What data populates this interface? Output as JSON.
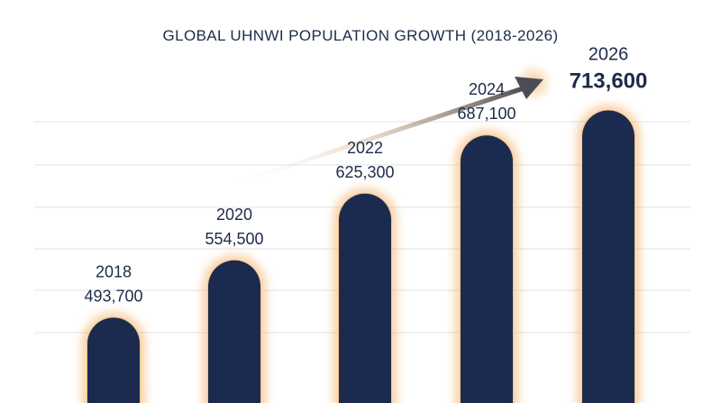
{
  "colors": {
    "bar": "#1b2b4f",
    "glow": "#f2a04a",
    "grid": "#e3e3e3",
    "arrow": "#4a4d58",
    "text": "#1d2b4a"
  },
  "chart_data": {
    "type": "bar",
    "title": "GLOBAL UHNWI POPULATION GROWTH (2018-2026)",
    "categories": [
      "2018",
      "2020",
      "2022",
      "2024",
      "2026"
    ],
    "values": [
      493700,
      554500,
      625300,
      687100,
      713600
    ],
    "value_labels": [
      "493,700",
      "554,500",
      "625,300",
      "687,100",
      "713,600"
    ],
    "highlight_index": 4,
    "grid": true,
    "trend_arrow": true
  }
}
